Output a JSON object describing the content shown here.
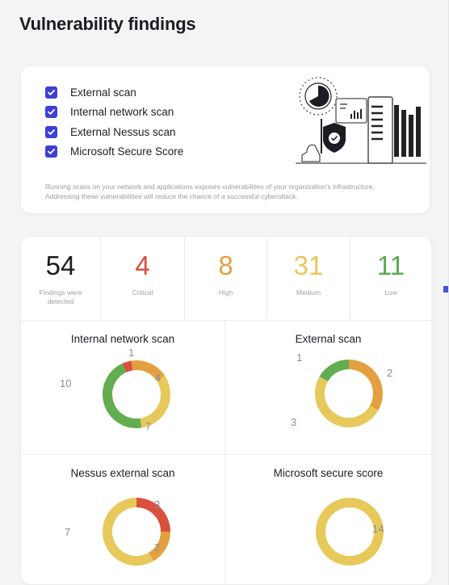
{
  "title": "Vulnerability findings",
  "scans": [
    {
      "label": "External scan",
      "checked": true
    },
    {
      "label": "Internal network scan",
      "checked": true
    },
    {
      "label": "External Nessus scan",
      "checked": true
    },
    {
      "label": "Microsoft Secure Score",
      "checked": true
    }
  ],
  "scan_description": "Running scans on your network and applications exposes  vulnerabilities of your organization's infrastructure. Addressing these vulnerabilities will reduce the chance of a successful cyberattack.",
  "stats": [
    {
      "value": "54",
      "label": "Findings were detected",
      "color": "#1c1c22"
    },
    {
      "value": "4",
      "label": "Critical",
      "color": "#d9503c"
    },
    {
      "value": "8",
      "label": "High",
      "color": "#e4a03e"
    },
    {
      "value": "31",
      "label": "Medium",
      "color": "#e9c55a"
    },
    {
      "value": "11",
      "label": "Low",
      "color": "#5da84d"
    }
  ],
  "colors": {
    "critical": "#d9503c",
    "high": "#e4a03e",
    "medium": "#e6c95a",
    "low": "#62ad4f",
    "accent": "#3d3fd6"
  },
  "charts": [
    {
      "title": "Internal network scan",
      "segments": [
        {
          "label": "1",
          "value": 1,
          "severity": "critical"
        },
        {
          "label": "4",
          "value": 4,
          "severity": "high"
        },
        {
          "label": "7",
          "value": 7,
          "severity": "medium"
        },
        {
          "label": "10",
          "value": 10,
          "severity": "low"
        }
      ]
    },
    {
      "title": "External scan",
      "segments": [
        {
          "label": "2",
          "value": 2,
          "severity": "high"
        },
        {
          "label": "3",
          "value": 3,
          "severity": "medium"
        },
        {
          "label": "1",
          "value": 1,
          "severity": "low"
        }
      ]
    },
    {
      "title": "Nessus external scan",
      "segments": [
        {
          "label": "3",
          "value": 3,
          "severity": "critical"
        },
        {
          "label": "2",
          "value": 2,
          "severity": "high"
        },
        {
          "label": "7",
          "value": 7,
          "severity": "medium"
        }
      ]
    },
    {
      "title": "Microsoft secure score",
      "segments": [
        {
          "label": "14",
          "value": 14,
          "severity": "medium"
        }
      ]
    }
  ]
}
